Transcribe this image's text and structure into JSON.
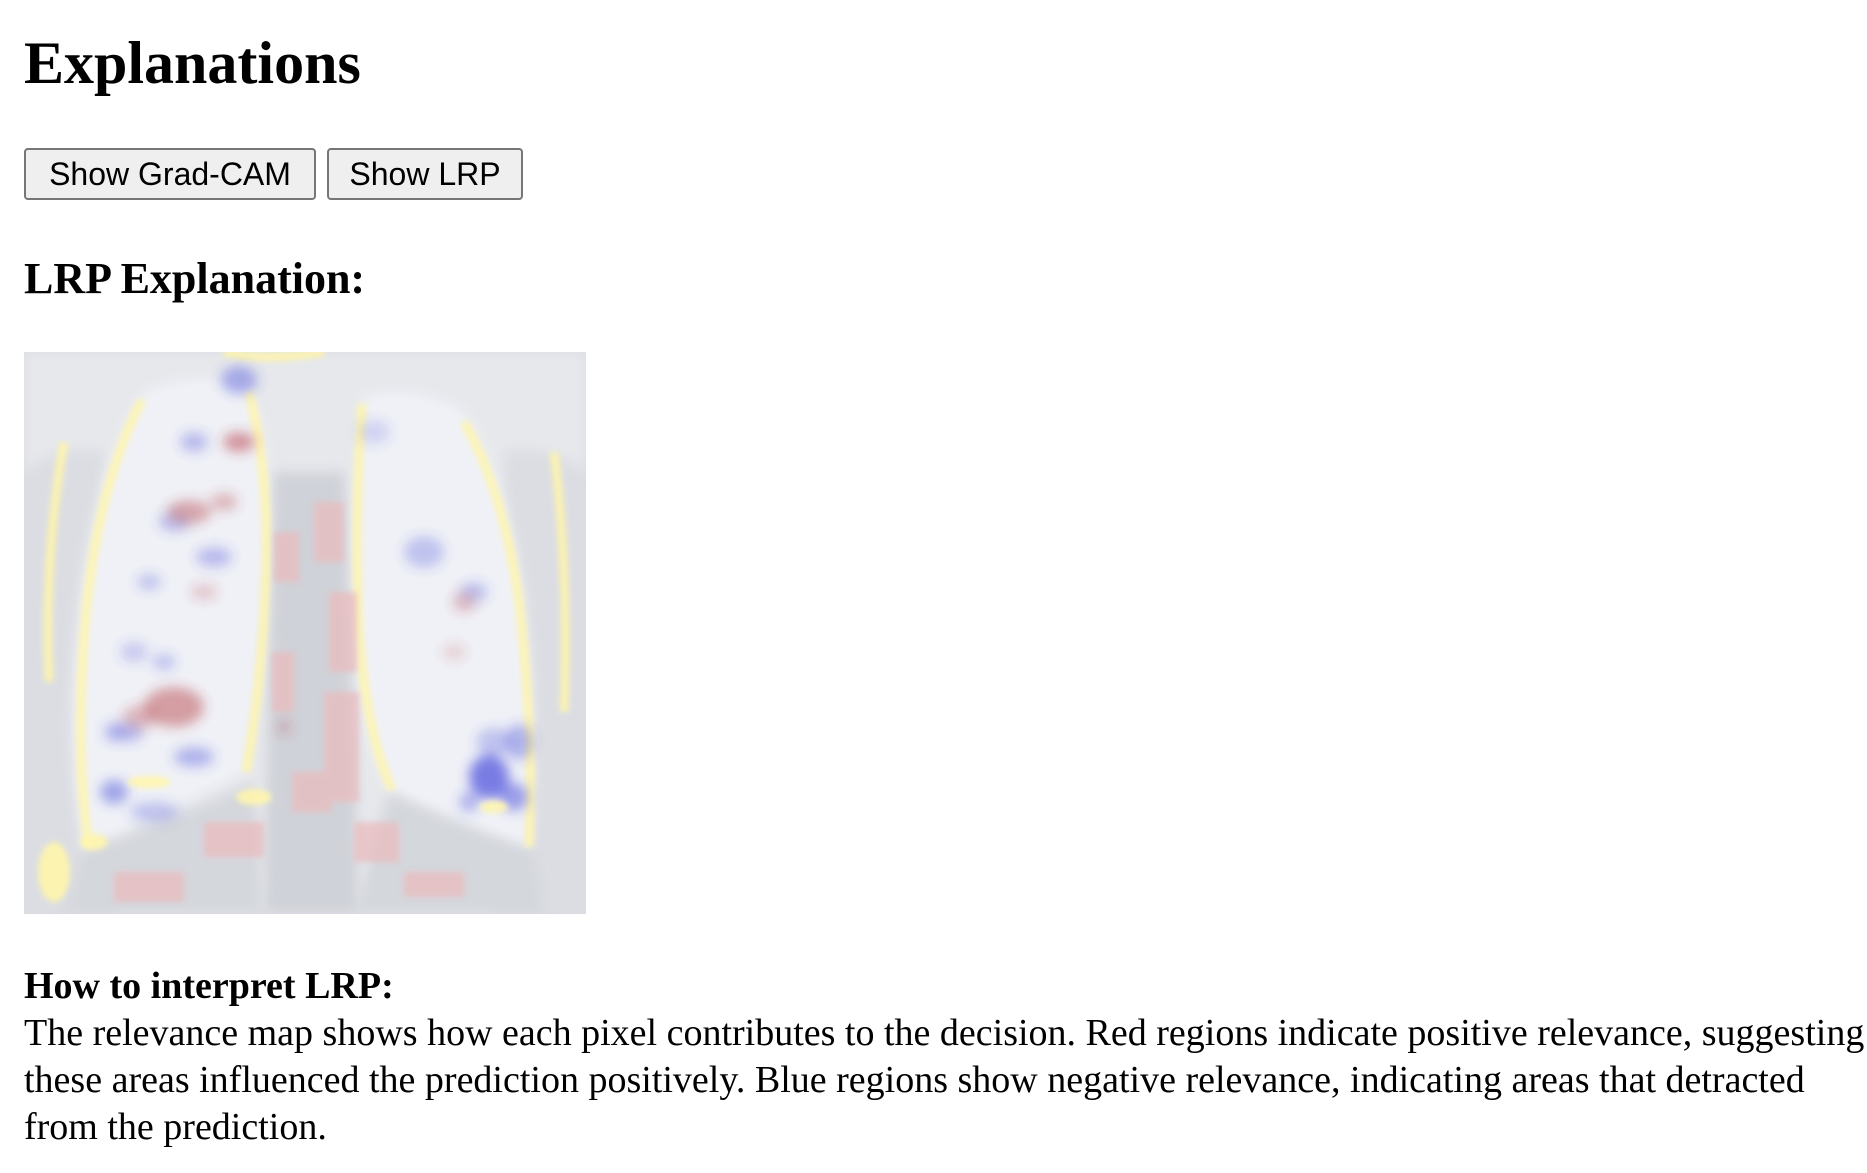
{
  "page": {
    "title": "Explanations"
  },
  "toolbar": {
    "gradcam_label": "Show Grad-CAM",
    "lrp_label": "Show LRP"
  },
  "explanation": {
    "heading": "LRP Explanation:",
    "image_icon": "lrp-heatmap-chest-xray-image"
  },
  "interpretation": {
    "label": "How to interpret LRP:",
    "text": "The relevance map shows how each pixel contributes to the decision. Red regions indicate positive relevance, suggesting these areas influenced the prediction positively. Blue regions show negative relevance, indicating areas that detracted from the prediction."
  },
  "colors": {
    "positive_relevance": "#b0303a",
    "negative_relevance": "#2a2fd0",
    "highlight": "#fff7a8",
    "base": "#d6d8de"
  }
}
